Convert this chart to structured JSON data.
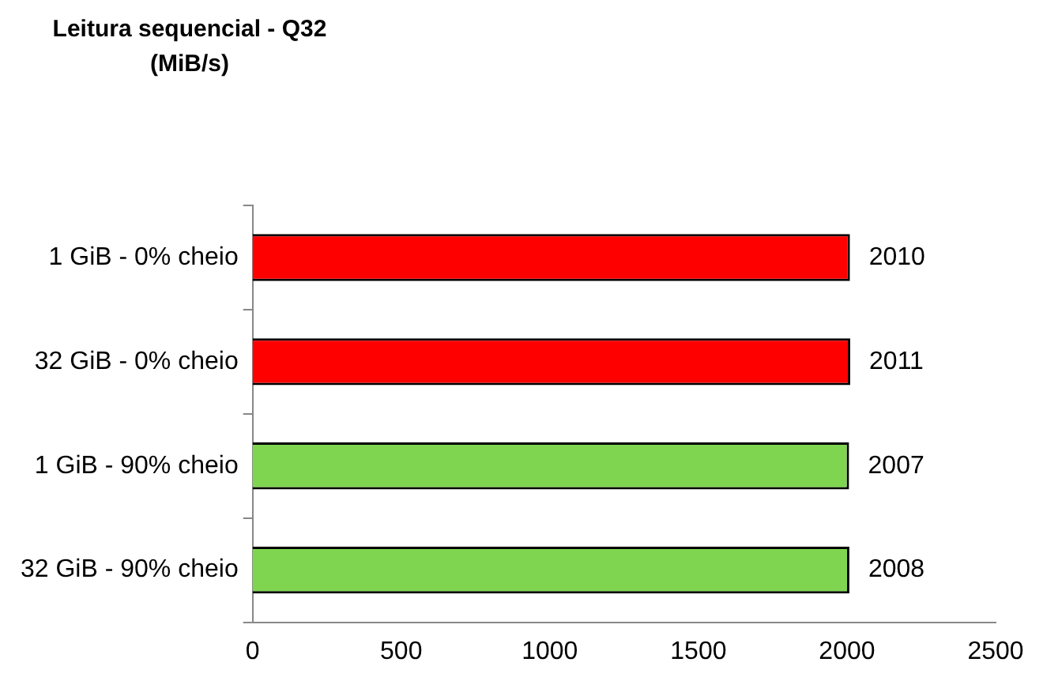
{
  "chart_data": {
    "type": "bar",
    "orientation": "horizontal",
    "title": "Leitura sequencial - Q32 (MiB/s)",
    "categories": [
      "1 GiB - 0% cheio",
      "32 GiB - 0% cheio",
      "1 GiB - 90% cheio",
      "32 GiB - 90% cheio"
    ],
    "values": [
      2010,
      2011,
      2007,
      2008
    ],
    "colors": [
      "#ff0000",
      "#ff0000",
      "#7fd54f",
      "#7fd54f"
    ],
    "xlim": [
      0,
      2500
    ],
    "xticks": [
      0,
      500,
      1000,
      1500,
      2000,
      2500
    ],
    "grid": false,
    "legend": false,
    "data_labels": true
  }
}
